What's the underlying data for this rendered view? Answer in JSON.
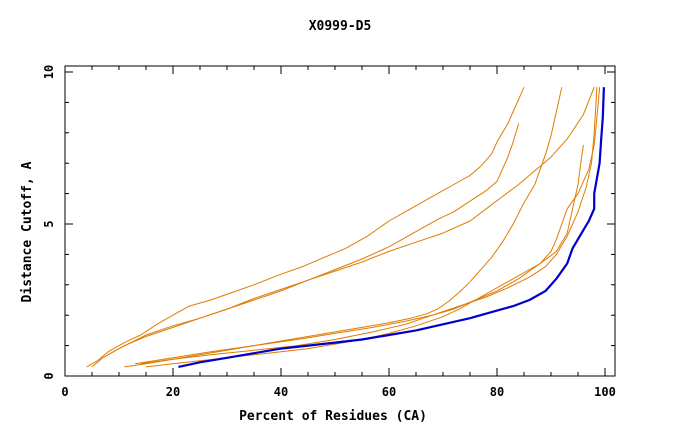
{
  "chart_data": {
    "type": "line",
    "title": "X0999-D5",
    "xlabel": "Percent of Residues (CA)",
    "ylabel": "Distance Cutoff, A",
    "xlim": [
      0,
      100
    ],
    "ylim": [
      0,
      10
    ],
    "xticks": [
      "0",
      "20",
      "40",
      "60",
      "80",
      "100"
    ],
    "yticks": [
      "0",
      "5",
      "10"
    ],
    "grid": false,
    "colors": {
      "highlight": "#0000cc",
      "others": "#e07b00"
    },
    "series": [
      {
        "highlight": true,
        "x": [
          21,
          25,
          30,
          35,
          40,
          45,
          50,
          55,
          60,
          65,
          70,
          75,
          80,
          83,
          86,
          89,
          91,
          92,
          93,
          94,
          95,
          96,
          97,
          98,
          98,
          98.5,
          99,
          99.3,
          99.6,
          99.8
        ],
        "y": [
          0.3,
          0.45,
          0.6,
          0.75,
          0.9,
          1.0,
          1.1,
          1.2,
          1.35,
          1.5,
          1.7,
          1.9,
          2.15,
          2.3,
          2.5,
          2.8,
          3.2,
          3.45,
          3.7,
          4.2,
          4.5,
          4.8,
          5.1,
          5.5,
          6.0,
          6.5,
          7.0,
          7.8,
          8.5,
          9.5
        ]
      },
      {
        "highlight": false,
        "x": [
          4,
          6,
          8,
          11,
          14,
          17,
          20,
          23,
          27,
          31,
          35,
          40,
          44,
          48,
          52,
          56,
          60,
          64,
          68,
          72,
          75,
          77,
          79,
          80,
          81,
          82,
          83,
          84,
          85
        ],
        "y": [
          0.3,
          0.5,
          0.8,
          1.1,
          1.35,
          1.7,
          2.0,
          2.3,
          2.5,
          2.75,
          3.0,
          3.35,
          3.6,
          3.9,
          4.2,
          4.6,
          5.1,
          5.5,
          5.9,
          6.3,
          6.6,
          6.9,
          7.3,
          7.7,
          8.0,
          8.3,
          8.7,
          9.1,
          9.5
        ]
      },
      {
        "highlight": false,
        "x": [
          5,
          7,
          10,
          15,
          20,
          25,
          30,
          35,
          40,
          45,
          50,
          55,
          60,
          63,
          66,
          69,
          72,
          75,
          78,
          80,
          81,
          82,
          83,
          84
        ],
        "y": [
          0.3,
          0.6,
          0.9,
          1.35,
          1.65,
          1.9,
          2.2,
          2.5,
          2.8,
          3.15,
          3.5,
          3.85,
          4.25,
          4.55,
          4.85,
          5.15,
          5.4,
          5.75,
          6.1,
          6.4,
          6.8,
          7.2,
          7.7,
          8.3
        ]
      },
      {
        "highlight": false,
        "x": [
          8,
          11,
          15,
          20,
          25,
          30,
          35,
          40,
          45,
          50,
          55,
          60,
          65,
          70,
          75,
          78,
          81,
          84,
          87,
          90,
          93,
          96,
          98
        ],
        "y": [
          0.7,
          1.0,
          1.3,
          1.6,
          1.9,
          2.2,
          2.55,
          2.85,
          3.15,
          3.45,
          3.75,
          4.1,
          4.4,
          4.7,
          5.1,
          5.5,
          5.9,
          6.3,
          6.75,
          7.2,
          7.8,
          8.6,
          9.5
        ]
      },
      {
        "highlight": false,
        "x": [
          11,
          15,
          20,
          25,
          30,
          35,
          40,
          45,
          50,
          55,
          60,
          64,
          67,
          69,
          71,
          73,
          75,
          77,
          79,
          81,
          83,
          85,
          87,
          88,
          89,
          90,
          91,
          92
        ],
        "y": [
          0.3,
          0.4,
          0.55,
          0.7,
          0.85,
          1.0,
          1.15,
          1.3,
          1.45,
          1.6,
          1.75,
          1.9,
          2.05,
          2.2,
          2.45,
          2.75,
          3.1,
          3.5,
          3.9,
          4.4,
          5.0,
          5.7,
          6.3,
          6.8,
          7.3,
          7.9,
          8.7,
          9.5
        ]
      },
      {
        "highlight": false,
        "x": [
          15,
          20,
          25,
          30,
          35,
          40,
          45,
          50,
          55,
          60,
          65,
          70,
          73,
          76,
          80,
          84,
          88,
          91,
          93,
          94,
          95,
          95.5,
          96
        ],
        "y": [
          0.3,
          0.4,
          0.5,
          0.6,
          0.7,
          0.8,
          0.9,
          1.05,
          1.2,
          1.4,
          1.65,
          1.95,
          2.2,
          2.5,
          2.9,
          3.3,
          3.7,
          4.1,
          4.7,
          5.5,
          6.3,
          7.0,
          7.6
        ]
      },
      {
        "highlight": false,
        "x": [
          13,
          20,
          27,
          35,
          43,
          50,
          57,
          63,
          68,
          72,
          76,
          80,
          84,
          88,
          90,
          91,
          92,
          93,
          95,
          97,
          98,
          98.5,
          99
        ],
        "y": [
          0.4,
          0.6,
          0.8,
          1.0,
          1.2,
          1.4,
          1.6,
          1.8,
          2.0,
          2.2,
          2.5,
          2.8,
          3.2,
          3.7,
          4.1,
          4.5,
          5.0,
          5.5,
          6.0,
          6.8,
          7.6,
          8.5,
          9.5
        ]
      },
      {
        "highlight": false,
        "x": [
          14,
          20,
          27,
          35,
          43,
          50,
          57,
          63,
          68,
          73,
          78,
          82,
          86,
          89,
          91,
          93,
          95,
          96.5,
          97.5,
          98,
          98.5
        ],
        "y": [
          0.4,
          0.55,
          0.7,
          0.85,
          1.0,
          1.2,
          1.45,
          1.7,
          2.0,
          2.3,
          2.6,
          2.9,
          3.25,
          3.6,
          4.0,
          4.6,
          5.4,
          6.2,
          7.0,
          8.0,
          9.5
        ]
      }
    ]
  }
}
